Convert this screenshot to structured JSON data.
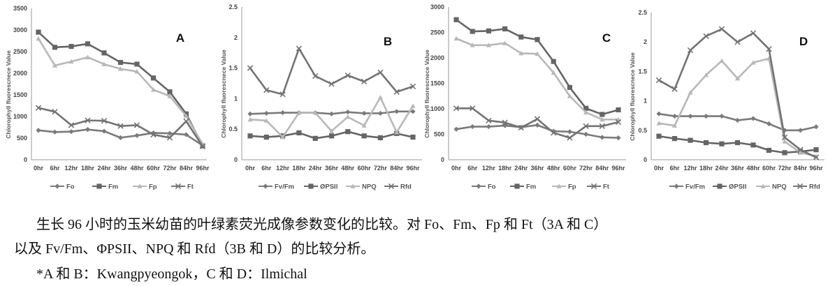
{
  "chart_data": [
    {
      "type": "line",
      "panel_label": "A",
      "ylabel": "Chlorophyll fluorescnece Value",
      "categories": [
        "0hr",
        "6hr",
        "12hr",
        "18hr",
        "24hr",
        "36hr",
        "48hr",
        "60hr",
        "72hr",
        "84hr",
        "96hr"
      ],
      "ylim": [
        0,
        3500
      ],
      "yticks": [
        0,
        500,
        1000,
        1500,
        2000,
        2500,
        3000,
        3500
      ],
      "grid": false,
      "legend_position": "bottom",
      "series": [
        {
          "name": "Fo",
          "color": "#7a7a7a",
          "marker": "diamond",
          "values": [
            680,
            640,
            650,
            700,
            660,
            510,
            560,
            620,
            610,
            580,
            330
          ]
        },
        {
          "name": "Fm",
          "color": "#656565",
          "marker": "square",
          "values": [
            2950,
            2600,
            2620,
            2680,
            2470,
            2250,
            2210,
            1890,
            1570,
            1060,
            320
          ]
        },
        {
          "name": "Fp",
          "color": "#b8b8b8",
          "marker": "triangle",
          "values": [
            2800,
            2180,
            2270,
            2370,
            2210,
            2100,
            2040,
            1620,
            1470,
            1010,
            360
          ]
        },
        {
          "name": "Ft",
          "color": "#737373",
          "marker": "cross",
          "values": [
            1200,
            1110,
            800,
            910,
            900,
            780,
            800,
            580,
            510,
            890,
            310
          ]
        }
      ]
    },
    {
      "type": "line",
      "panel_label": "B",
      "ylabel": "Chlorophyll fluorescnece Value",
      "categories": [
        "0hr",
        "6hr",
        "12hr",
        "18hr",
        "24hr",
        "36hr",
        "48hr",
        "60hr",
        "72hr",
        "84hr",
        "96hr"
      ],
      "ylim": [
        0,
        2.5
      ],
      "yticks": [
        0,
        0.5,
        1,
        1.5,
        2,
        2.5
      ],
      "grid": false,
      "legend_position": "bottom",
      "series": [
        {
          "name": "Fv/Fm",
          "color": "#7a7a7a",
          "marker": "diamond",
          "values": [
            0.75,
            0.76,
            0.77,
            0.77,
            0.77,
            0.75,
            0.78,
            0.76,
            0.76,
            0.79,
            0.79
          ]
        },
        {
          "name": "ØPSII",
          "color": "#656565",
          "marker": "square",
          "values": [
            0.39,
            0.37,
            0.39,
            0.44,
            0.35,
            0.39,
            0.46,
            0.39,
            0.36,
            0.43,
            0.37
          ]
        },
        {
          "name": "NPQ",
          "color": "#b8b8b8",
          "marker": "triangle",
          "values": [
            0.66,
            0.64,
            0.37,
            0.77,
            0.77,
            0.47,
            0.7,
            0.56,
            1.02,
            0.45,
            0.88
          ]
        },
        {
          "name": "Rfd",
          "color": "#737373",
          "marker": "cross",
          "values": [
            1.5,
            1.14,
            1.07,
            1.82,
            1.37,
            1.24,
            1.38,
            1.28,
            1.43,
            1.11,
            1.2
          ]
        }
      ]
    },
    {
      "type": "line",
      "panel_label": "C",
      "ylabel": "Chlorophyll fluorescnece Value",
      "categories": [
        "0hr",
        "6hr",
        "12hr",
        "18hr",
        "24hr",
        "36hr",
        "48hr",
        "60hr",
        "72hr",
        "84hr",
        "96hr"
      ],
      "ylim": [
        0,
        3000
      ],
      "yticks": [
        0,
        500,
        1000,
        1500,
        2000,
        2500,
        3000
      ],
      "grid": false,
      "legend_position": "bottom",
      "series": [
        {
          "name": "Fo",
          "color": "#7a7a7a",
          "marker": "diamond",
          "values": [
            600,
            650,
            650,
            670,
            640,
            680,
            560,
            550,
            500,
            440,
            430
          ]
        },
        {
          "name": "Fm",
          "color": "#656565",
          "marker": "square",
          "values": [
            2750,
            2520,
            2530,
            2570,
            2410,
            2360,
            1930,
            1420,
            1010,
            890,
            980
          ]
        },
        {
          "name": "Fp",
          "color": "#b8b8b8",
          "marker": "triangle",
          "values": [
            2380,
            2250,
            2250,
            2290,
            2090,
            2080,
            1710,
            1250,
            930,
            790,
            790
          ]
        },
        {
          "name": "Ft",
          "color": "#737373",
          "marker": "cross",
          "values": [
            1010,
            1010,
            770,
            730,
            630,
            800,
            530,
            430,
            660,
            660,
            740
          ]
        }
      ]
    },
    {
      "type": "line",
      "panel_label": "D",
      "ylabel": "Chlorophyll fluorescnece Value",
      "categories": [
        "0hr",
        "6hr",
        "12hr",
        "18hr",
        "24hr",
        "36hr",
        "48hr",
        "60hr",
        "72hr",
        "84hr",
        "96hr"
      ],
      "ylim": [
        0,
        2.5
      ],
      "yticks": [
        0,
        0.5,
        1,
        1.5,
        2,
        2.5
      ],
      "grid": false,
      "legend_position": "bottom",
      "series": [
        {
          "name": "Fv/Fm",
          "color": "#7a7a7a",
          "marker": "diamond",
          "values": [
            0.78,
            0.74,
            0.74,
            0.74,
            0.74,
            0.67,
            0.7,
            0.61,
            0.5,
            0.5,
            0.56
          ]
        },
        {
          "name": "ØPSII",
          "color": "#656565",
          "marker": "square",
          "values": [
            0.4,
            0.36,
            0.33,
            0.29,
            0.27,
            0.29,
            0.25,
            0.16,
            0.12,
            0.14,
            0.17
          ]
        },
        {
          "name": "NPQ",
          "color": "#b8b8b8",
          "marker": "triangle",
          "values": [
            0.62,
            0.58,
            1.14,
            1.44,
            1.68,
            1.38,
            1.65,
            1.72,
            0.31,
            0.12,
            0.06
          ]
        },
        {
          "name": "Rfd",
          "color": "#737373",
          "marker": "cross",
          "values": [
            1.35,
            1.2,
            1.86,
            2.1,
            2.22,
            2.0,
            2.15,
            1.88,
            0.38,
            0.17,
            0.04
          ]
        }
      ]
    }
  ],
  "caption": {
    "line1": "生长 96 小时的玉米幼苗的叶绿素荧光成像参数变化的比较。对 Fo、Fm、Fp 和 Ft（3A 和 C）",
    "line2": "以及 Fv/Fm、ΦPSII、NPQ 和 Rfd（3B 和 D）的比较分析。",
    "line3": "*A 和 B：Kwangpyeongok，C 和 D：Ilmichal"
  }
}
